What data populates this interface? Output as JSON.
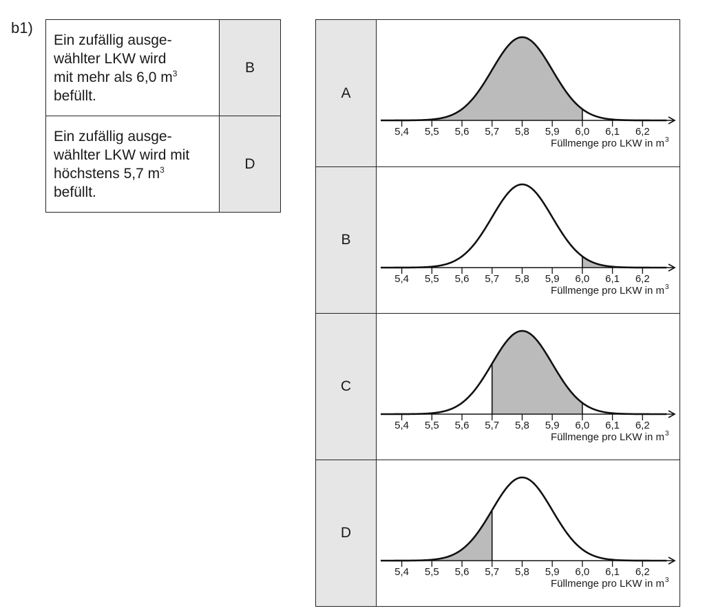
{
  "task_label": "b1)",
  "statements": [
    {
      "lines": [
        "Ein zufällig ausge-",
        "wählter LKW wird",
        "mit mehr als 6,0 m"
      ],
      "superscript": "3",
      "last_line": "befüllt.",
      "answer": "B"
    },
    {
      "lines": [
        "Ein zufällig ausge-",
        "wählter LKW wird mit",
        "höchstens 5,7 m"
      ],
      "superscript": "3",
      "last_line": "befüllt.",
      "answer": "D"
    }
  ],
  "options": [
    {
      "letter": "A",
      "shade_from": null,
      "shade_to": 6.0
    },
    {
      "letter": "B",
      "shade_from": 6.0,
      "shade_to": null
    },
    {
      "letter": "C",
      "shade_from": 5.7,
      "shade_to": 6.0
    },
    {
      "letter": "D",
      "shade_from": null,
      "shade_to": 5.7
    }
  ],
  "chart_data": {
    "type": "area",
    "distribution": "normal",
    "mean": 5.8,
    "sd": 0.1,
    "ticks": [
      "5,4",
      "5,5",
      "5,6",
      "5,7",
      "5,8",
      "5,9",
      "6,0",
      "6,1",
      "6,2"
    ],
    "tick_values": [
      5.4,
      5.5,
      5.6,
      5.7,
      5.8,
      5.9,
      6.0,
      6.1,
      6.2
    ],
    "xlabel": "Füllmenge pro LKW in m",
    "xlabel_superscript": "3",
    "xlim": [
      5.33,
      6.3
    ],
    "grid": false
  },
  "colors": {
    "shade": "#bbbbbb",
    "letter_bg": "#e6e6e6",
    "line": "#111111"
  }
}
